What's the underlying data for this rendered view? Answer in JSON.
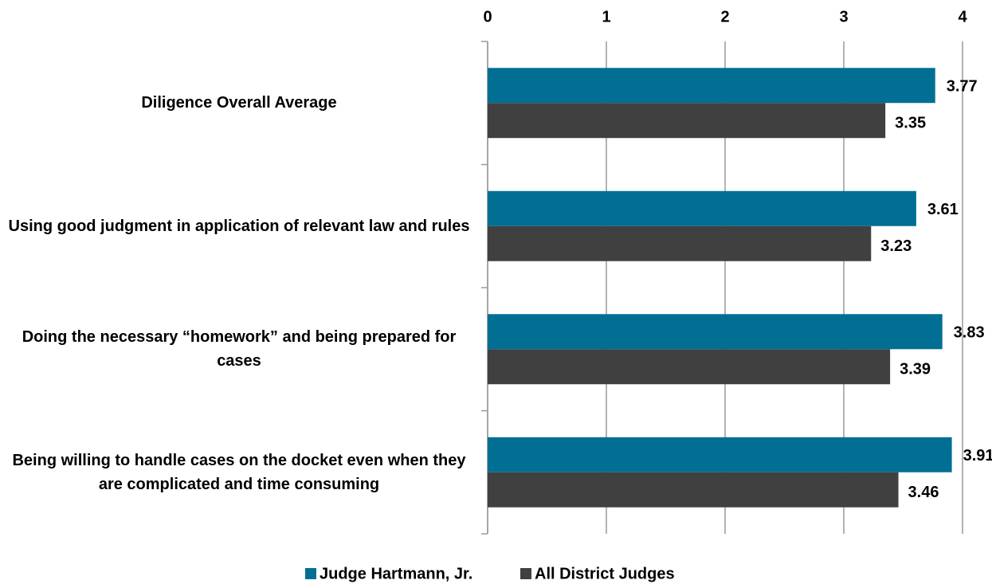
{
  "chart_data": {
    "type": "barh",
    "categories": [
      "Diligence Overall Average",
      "Using good judgment in application of relevant law and rules",
      "Doing the necessary “homework” and being prepared for cases",
      "Being willing to handle cases on the docket even when they are complicated and time consuming"
    ],
    "series": [
      {
        "name": "Judge Hartmann, Jr.",
        "color": "#006f93",
        "values": [
          3.77,
          3.61,
          3.83,
          3.91
        ]
      },
      {
        "name": "All District Judges",
        "color": "#404040",
        "values": [
          3.35,
          3.23,
          3.39,
          3.46
        ]
      }
    ],
    "xlim": [
      0,
      4
    ],
    "xticks": [
      0,
      1,
      2,
      3,
      4
    ],
    "grid": true,
    "legend": "bottom"
  }
}
